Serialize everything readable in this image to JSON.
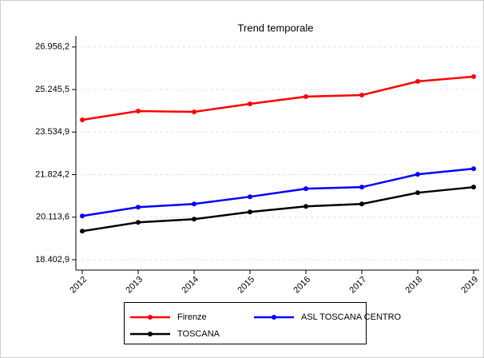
{
  "chart_data": {
    "type": "line",
    "title": "Trend temporale",
    "categories": [
      "2012",
      "2013",
      "2014",
      "2015",
      "2016",
      "2017",
      "2018",
      "2019"
    ],
    "series": [
      {
        "name": "Firenze",
        "color": "#ff0000",
        "values": [
          24026,
          24380,
          24348,
          24670,
          24960,
          25024,
          25572,
          25765
        ]
      },
      {
        "name": "ASL TOSCANA CENTRO",
        "color": "#0000ff",
        "values": [
          20162,
          20516,
          20645,
          20935,
          21257,
          21321,
          21836,
          22062
        ]
      },
      {
        "name": "TOSCANA",
        "color": "#000000",
        "values": [
          19550,
          19904,
          20033,
          20323,
          20548,
          20645,
          21096,
          21321
        ]
      }
    ],
    "ylim": [
      17985,
      27400
    ],
    "yticks": [
      {
        "value": 18402.9,
        "label": "18.402,9"
      },
      {
        "value": 20113.6,
        "label": "20.113,6"
      },
      {
        "value": 21824.2,
        "label": "21.824,2"
      },
      {
        "value": 23534.9,
        "label": "23.534,9"
      },
      {
        "value": 25245.5,
        "label": "25.245,5"
      },
      {
        "value": 26956.2,
        "label": "26.956,2"
      }
    ],
    "grid": true,
    "legend": "bottom"
  }
}
